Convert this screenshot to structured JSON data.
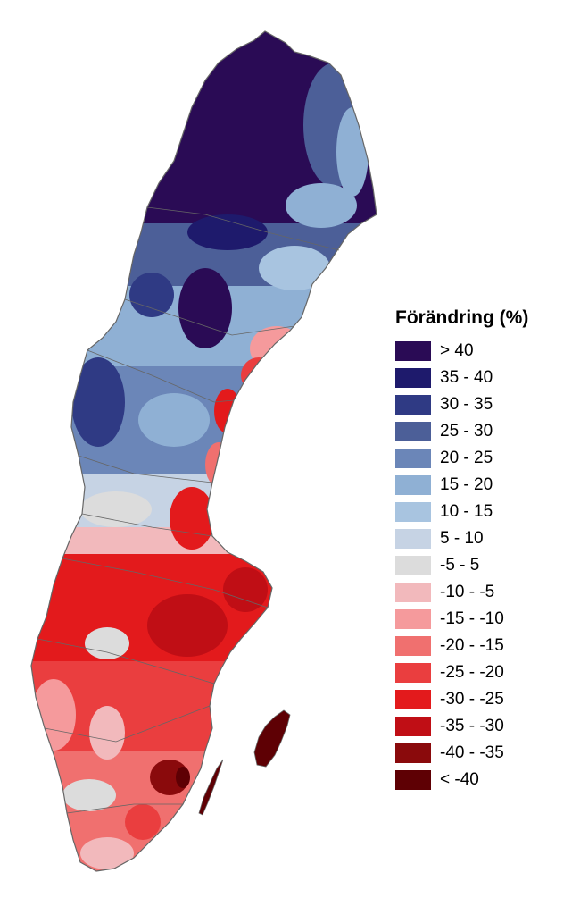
{
  "legend": {
    "title": "Förändring (%)",
    "classes": [
      {
        "label": "> 40",
        "color": "#2a0b55"
      },
      {
        "label": "35 - 40",
        "color": "#1e1a6c"
      },
      {
        "label": "30 - 35",
        "color": "#2f3a84"
      },
      {
        "label": "25 - 30",
        "color": "#4c5f98"
      },
      {
        "label": "20 - 25",
        "color": "#6b86b8"
      },
      {
        "label": "15 - 20",
        "color": "#8fb0d4"
      },
      {
        "label": "10 - 15",
        "color": "#a8c4e0"
      },
      {
        "label": "5 - 10",
        "color": "#c6d3e4"
      },
      {
        "label": "-5 - 5",
        "color": "#dcdcdc"
      },
      {
        "label": "-10 - -5",
        "color": "#f2b9bc"
      },
      {
        "label": "-15 - -10",
        "color": "#f59a9c"
      },
      {
        "label": "-20 - -15",
        "color": "#f0706f"
      },
      {
        "label": "-25 - -20",
        "color": "#ea3e3f"
      },
      {
        "label": "-30 - -25",
        "color": "#e31a1c"
      },
      {
        "label": "-35 - -30",
        "color": "#c00e15"
      },
      {
        "label": "-40 - -35",
        "color": "#8a0a0c"
      },
      {
        "label": "< -40",
        "color": "#5e0004"
      }
    ]
  },
  "map": {
    "region": "Sweden",
    "boundary_color": "#666666",
    "background_color": "#ffffff"
  }
}
